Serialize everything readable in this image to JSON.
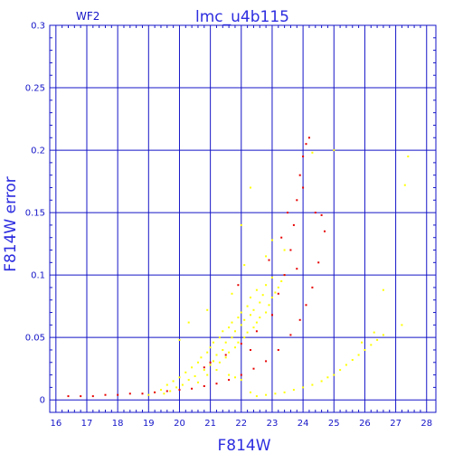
{
  "chart_data": {
    "type": "scatter",
    "title": "lmc_u4b115",
    "subtitle": "WF2",
    "xlabel": "F814W",
    "ylabel": "F814W error",
    "xlim": [
      15.8,
      28.3
    ],
    "ylim": [
      -0.01,
      0.3
    ],
    "x_ticks": [
      16,
      17,
      18,
      19,
      20,
      21,
      22,
      23,
      24,
      25,
      26,
      27,
      28
    ],
    "y_ticks": [
      0,
      0.05,
      0.1,
      0.15,
      0.2,
      0.25,
      0.3
    ],
    "y_tick_labels": [
      "0",
      "0.05",
      "0.1",
      "0.15",
      "0.2",
      "0.25",
      "0.3"
    ],
    "grid": true,
    "colors": {
      "axis": "#1515c8",
      "label": "#2d2de0",
      "series_red": "#e80000",
      "series_yellow": "#ffff00"
    },
    "series": [
      {
        "color": "#ffff00",
        "points": [
          [
            19.0,
            0.004
          ],
          [
            19.2,
            0.006
          ],
          [
            19.4,
            0.008
          ],
          [
            19.5,
            0.005
          ],
          [
            19.6,
            0.012
          ],
          [
            19.7,
            0.007
          ],
          [
            19.8,
            0.015
          ],
          [
            19.9,
            0.01
          ],
          [
            20.0,
            0.018
          ],
          [
            20.1,
            0.012
          ],
          [
            20.2,
            0.022
          ],
          [
            20.3,
            0.016
          ],
          [
            20.4,
            0.026
          ],
          [
            20.5,
            0.019
          ],
          [
            20.6,
            0.03
          ],
          [
            20.6,
            0.014
          ],
          [
            20.7,
            0.034
          ],
          [
            20.8,
            0.024
          ],
          [
            20.9,
            0.038
          ],
          [
            20.9,
            0.02
          ],
          [
            21.0,
            0.028
          ],
          [
            21.0,
            0.042
          ],
          [
            21.1,
            0.031
          ],
          [
            21.1,
            0.046
          ],
          [
            21.2,
            0.024
          ],
          [
            21.2,
            0.036
          ],
          [
            21.3,
            0.05
          ],
          [
            21.3,
            0.03
          ],
          [
            21.4,
            0.04
          ],
          [
            21.4,
            0.055
          ],
          [
            21.5,
            0.034
          ],
          [
            21.5,
            0.046
          ],
          [
            21.6,
            0.058
          ],
          [
            21.6,
            0.038
          ],
          [
            21.7,
            0.05
          ],
          [
            21.7,
            0.062
          ],
          [
            21.8,
            0.042
          ],
          [
            21.8,
            0.055
          ],
          [
            21.9,
            0.066
          ],
          [
            21.9,
            0.046
          ],
          [
            22.0,
            0.06
          ],
          [
            22.0,
            0.07
          ],
          [
            22.1,
            0.05
          ],
          [
            22.1,
            0.064
          ],
          [
            22.2,
            0.075
          ],
          [
            22.2,
            0.054
          ],
          [
            22.3,
            0.068
          ],
          [
            22.3,
            0.082
          ],
          [
            22.4,
            0.058
          ],
          [
            22.4,
            0.072
          ],
          [
            22.5,
            0.088
          ],
          [
            22.5,
            0.062
          ],
          [
            22.6,
            0.078
          ],
          [
            22.6,
            0.066
          ],
          [
            22.7,
            0.084
          ],
          [
            22.8,
            0.07
          ],
          [
            22.8,
            0.092
          ],
          [
            22.9,
            0.076
          ],
          [
            23.0,
            0.082
          ],
          [
            23.0,
            0.098
          ],
          [
            23.1,
            0.086
          ],
          [
            23.2,
            0.09
          ],
          [
            23.3,
            0.095
          ],
          [
            23.4,
            0.1
          ],
          [
            20.0,
            0.048
          ],
          [
            20.3,
            0.062
          ],
          [
            20.9,
            0.072
          ],
          [
            21.7,
            0.085
          ],
          [
            22.0,
            0.14
          ],
          [
            22.1,
            0.108
          ],
          [
            22.8,
            0.115
          ],
          [
            23.4,
            0.12
          ],
          [
            22.3,
            0.17
          ],
          [
            24.3,
            0.198
          ],
          [
            25.0,
            0.2
          ],
          [
            27.4,
            0.195
          ],
          [
            27.3,
            0.172
          ],
          [
            26.6,
            0.088
          ],
          [
            27.2,
            0.06
          ],
          [
            23.0,
            0.128
          ],
          [
            21.6,
            0.02
          ],
          [
            21.8,
            0.018
          ],
          [
            22.0,
            0.016
          ],
          [
            22.3,
            0.006
          ],
          [
            22.5,
            0.003
          ],
          [
            22.8,
            0.004
          ],
          [
            23.1,
            0.005
          ],
          [
            23.4,
            0.006
          ],
          [
            23.7,
            0.008
          ],
          [
            24.0,
            0.01
          ],
          [
            24.3,
            0.012
          ],
          [
            24.6,
            0.015
          ],
          [
            24.8,
            0.018
          ],
          [
            25.0,
            0.02
          ],
          [
            25.2,
            0.024
          ],
          [
            25.4,
            0.028
          ],
          [
            25.6,
            0.032
          ],
          [
            25.8,
            0.036
          ],
          [
            26.0,
            0.04
          ],
          [
            26.2,
            0.044
          ],
          [
            26.4,
            0.048
          ],
          [
            26.6,
            0.052
          ],
          [
            25.9,
            0.046
          ],
          [
            26.3,
            0.054
          ]
        ]
      },
      {
        "color": "#e80000",
        "points": [
          [
            16.4,
            0.003
          ],
          [
            16.8,
            0.003
          ],
          [
            17.2,
            0.003
          ],
          [
            17.6,
            0.004
          ],
          [
            18.0,
            0.004
          ],
          [
            18.4,
            0.005
          ],
          [
            18.8,
            0.005
          ],
          [
            19.2,
            0.006
          ],
          [
            19.6,
            0.007
          ],
          [
            20.0,
            0.008
          ],
          [
            20.4,
            0.009
          ],
          [
            20.8,
            0.011
          ],
          [
            21.2,
            0.013
          ],
          [
            21.6,
            0.016
          ],
          [
            22.0,
            0.02
          ],
          [
            22.4,
            0.025
          ],
          [
            22.8,
            0.031
          ],
          [
            23.2,
            0.04
          ],
          [
            23.6,
            0.052
          ],
          [
            23.9,
            0.064
          ],
          [
            24.1,
            0.076
          ],
          [
            24.3,
            0.09
          ],
          [
            24.5,
            0.11
          ],
          [
            24.7,
            0.135
          ],
          [
            21.0,
            0.03
          ],
          [
            21.5,
            0.036
          ],
          [
            22.0,
            0.045
          ],
          [
            22.5,
            0.055
          ],
          [
            23.0,
            0.068
          ],
          [
            23.2,
            0.085
          ],
          [
            23.4,
            0.1
          ],
          [
            23.6,
            0.12
          ],
          [
            23.7,
            0.14
          ],
          [
            23.8,
            0.16
          ],
          [
            23.9,
            0.18
          ],
          [
            24.0,
            0.195
          ],
          [
            24.1,
            0.205
          ],
          [
            24.2,
            0.21
          ],
          [
            24.0,
            0.17
          ],
          [
            23.5,
            0.15
          ],
          [
            23.3,
            0.13
          ],
          [
            22.9,
            0.112
          ],
          [
            23.8,
            0.105
          ],
          [
            24.4,
            0.15
          ],
          [
            24.6,
            0.148
          ],
          [
            21.9,
            0.092
          ],
          [
            20.8,
            0.026
          ],
          [
            22.3,
            0.04
          ]
        ]
      }
    ]
  }
}
